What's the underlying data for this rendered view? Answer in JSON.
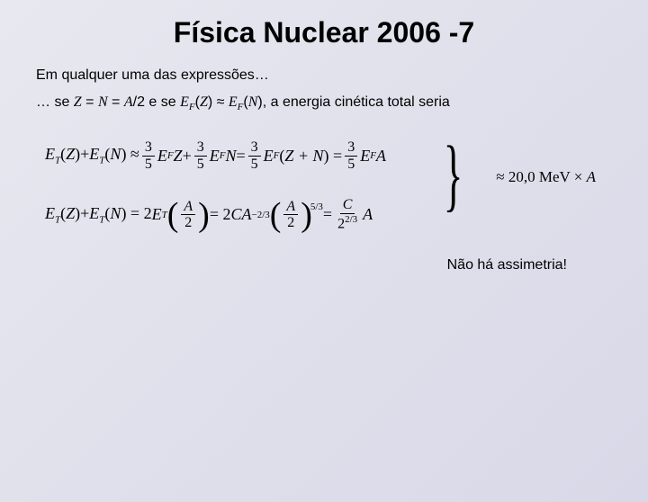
{
  "title": "Física Nuclear 2006 -7",
  "intro": "Em qualquer uma das expressões…",
  "line2_pre": "… se ",
  "line2_var1": "Z",
  "line2_eq1": " = ",
  "line2_var2": "N",
  "line2_eq2": " = ",
  "line2_var3": "A",
  "line2_div": "/2 e se ",
  "line2_ef1": "E",
  "line2_ef1sub": "F",
  "line2_p1": "(",
  "line2_z": "Z",
  "line2_p2": ") ≈ ",
  "line2_ef2": "E",
  "line2_ef2sub": "F",
  "line2_p3": "(",
  "line2_n": "N",
  "line2_p4": "), a energia cinética total seria",
  "eq1": {
    "lhs_et1": "E",
    "lhs_et1sub": "T",
    "lhs_p1": "(",
    "lhs_z": "Z",
    "lhs_p2": ")+",
    "lhs_et2": "E",
    "lhs_et2sub": "T",
    "lhs_p3": "(",
    "lhs_n": "N",
    "lhs_p4": ") ≈ ",
    "f1num": "3",
    "f1den": "5",
    "ef1": "E",
    "ef1sub": "F",
    "z": "Z",
    "plus1": " + ",
    "f2num": "3",
    "f2den": "5",
    "ef2": "E",
    "ef2sub": "F",
    "nn": "N",
    "eq": " = ",
    "f3num": "3",
    "f3den": "5",
    "ef3": "E",
    "ef3sub": "F",
    "p5": "(",
    "zn": "Z + N",
    "p6": ") = ",
    "f4num": "3",
    "f4den": "5",
    "ef4": "E",
    "ef4sub": "F",
    "a": "A"
  },
  "eq2": {
    "lhs_et1": "E",
    "lhs_et1sub": "T",
    "lhs_p1": "(",
    "lhs_z": "Z",
    "lhs_p2": ")+",
    "lhs_et2": "E",
    "lhs_et2sub": "T",
    "lhs_p3": "(",
    "lhs_n": "N",
    "lhs_p4": ") = 2",
    "et3": "E",
    "et3sub": "T",
    "bignum": "A",
    "bigden": "2",
    "mid": " = 2",
    "c": "C",
    "a2": "A",
    "exp1": "−2/3",
    "bignum2": "A",
    "bigden2": "2",
    "exp2": "5/3",
    "eq2": " = ",
    "rnum": "C",
    "rden_2": "2",
    "rden_exp": "2/3",
    "ra": "A"
  },
  "result": "≈ 20,0 MeV × ",
  "result_a": "A",
  "noasym": "Não há assimetria!",
  "colors": {
    "bg_start": "#e8e8f0",
    "bg_end": "#d8d8e8",
    "text": "#000000"
  }
}
